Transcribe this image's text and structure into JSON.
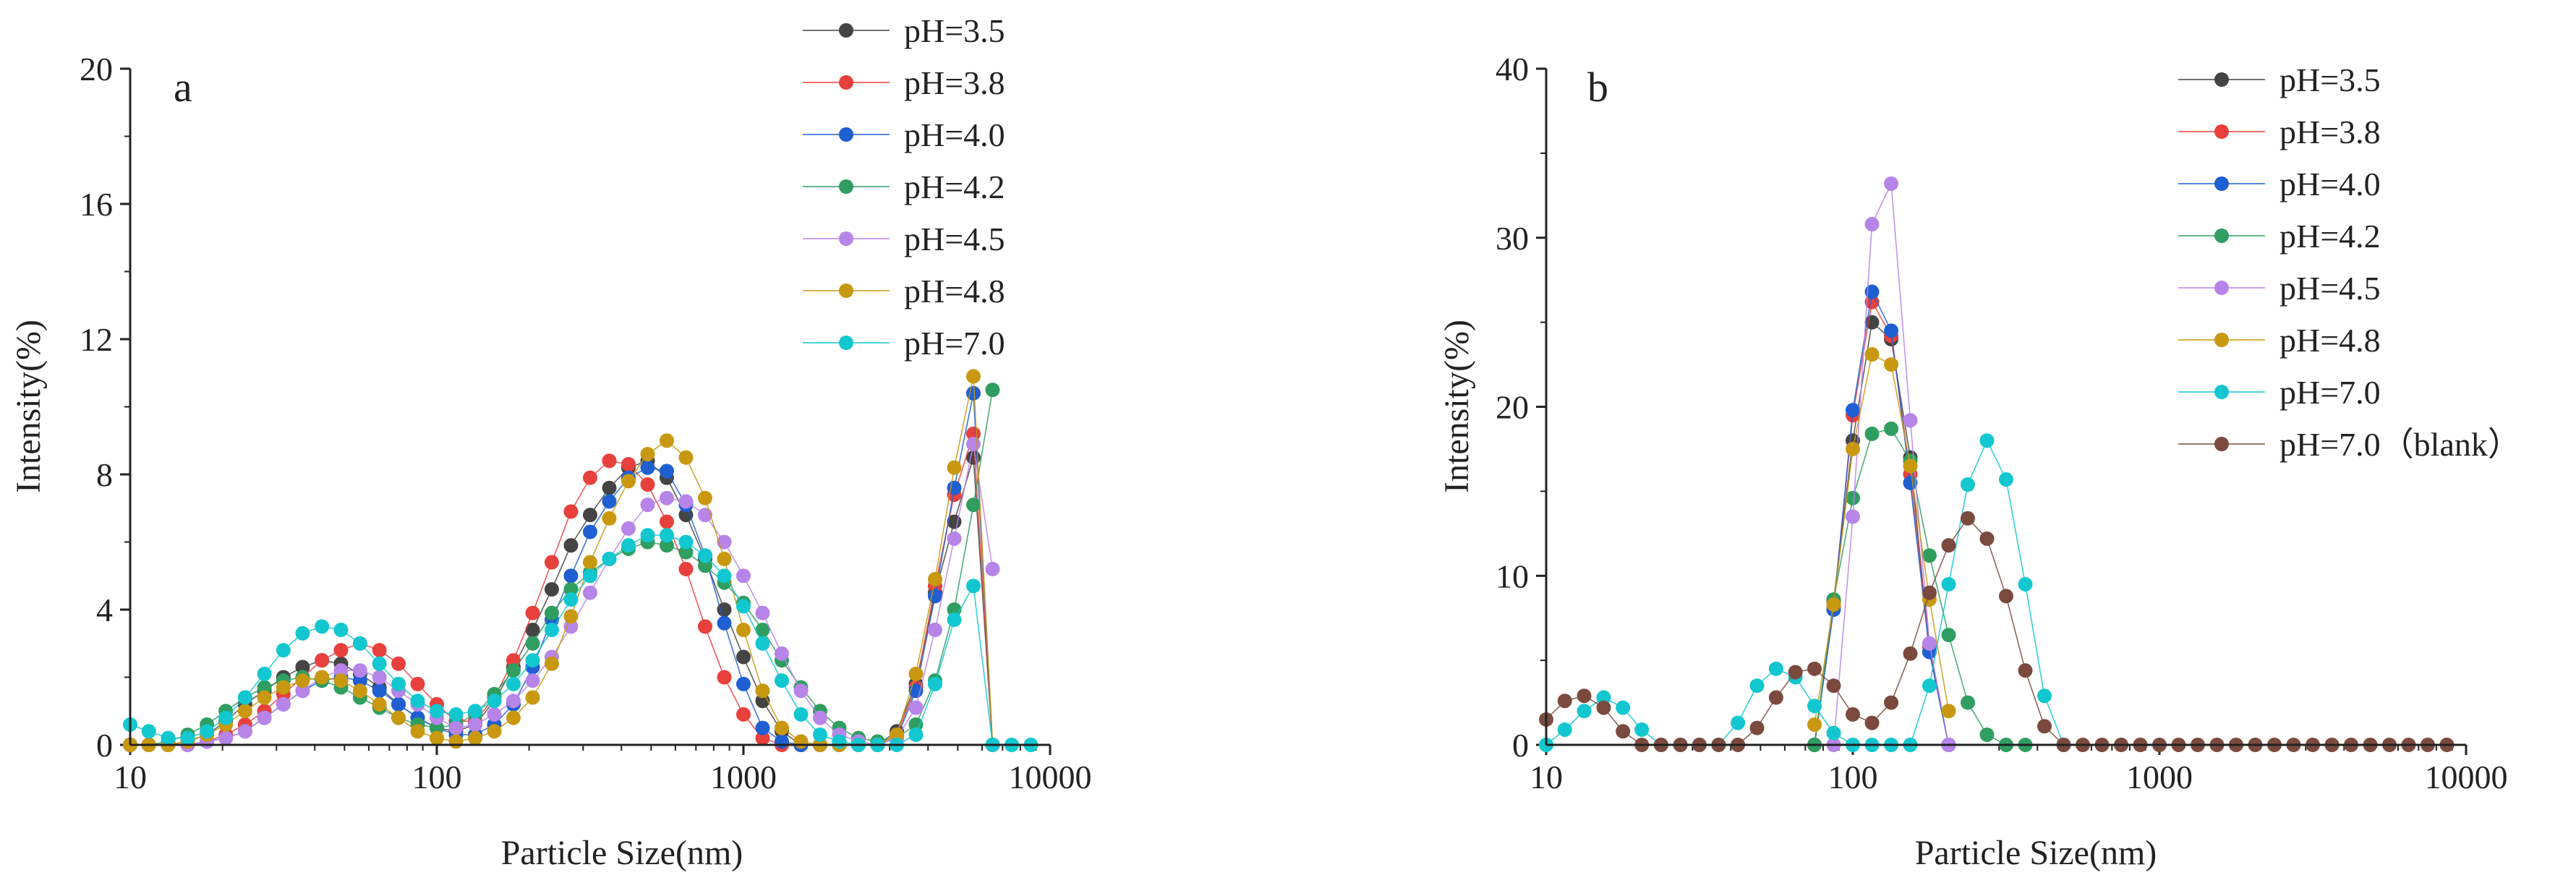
{
  "chart_data": [
    {
      "type": "line",
      "panel_label": "a",
      "xlabel": "Particle Size(nm)",
      "ylabel": "Intensity(%)",
      "xscale": "log",
      "xlim": [
        10,
        10000
      ],
      "ylim": [
        0,
        20
      ],
      "xticks": [
        "10",
        "100",
        "1000",
        "10000"
      ],
      "yticks": [
        "0",
        "4",
        "8",
        "12",
        "16",
        "20"
      ],
      "legend_position": "top-right",
      "series": [
        {
          "name": "pH=3.5",
          "color": "#444444",
          "x": [
            10,
            11.5,
            13.3,
            15.4,
            17.8,
            20.5,
            23.7,
            27.4,
            31.6,
            36.5,
            42.2,
            48.7,
            56.2,
            65,
            75,
            86.6,
            100,
            115.5,
            133.4,
            154,
            177.8,
            205.4,
            237.1,
            273.8,
            316.2,
            365.2,
            421.7,
            487,
            562.3,
            649.4,
            749.9,
            866,
            1000,
            1154.8,
            1333.5,
            1539.9,
            1778.3,
            2053.5,
            2371.4,
            2738.4,
            3162.3,
            3651.7,
            4217,
            4869.7,
            5623.4,
            6493.8
          ],
          "y": [
            0,
            0,
            0,
            0.1,
            0.3,
            0.7,
            1.2,
            1.6,
            2,
            2.3,
            2.5,
            2.4,
            2.1,
            1.7,
            1.2,
            0.8,
            0.5,
            0.4,
            0.6,
            1.3,
            2.3,
            3.4,
            4.6,
            5.9,
            6.8,
            7.6,
            8.2,
            8.4,
            7.9,
            6.8,
            5.5,
            4,
            2.6,
            1.3,
            0.4,
            0,
            0,
            0,
            0,
            0,
            0.4,
            1.8,
            4.5,
            6.6,
            8.5,
            0
          ]
        },
        {
          "name": "pH=3.8",
          "color": "#e8403c",
          "x": [
            10,
            11.5,
            13.3,
            15.4,
            17.8,
            20.5,
            23.7,
            27.4,
            31.6,
            36.5,
            42.2,
            48.7,
            56.2,
            65,
            75,
            86.6,
            100,
            115.5,
            133.4,
            154,
            177.8,
            205.4,
            237.1,
            273.8,
            316.2,
            365.2,
            421.7,
            487,
            562.3,
            649.4,
            749.9,
            866,
            1000,
            1154.8,
            1333.5,
            1539.9,
            1778.3,
            2053.5,
            2371.4,
            2738.4,
            3162.3,
            3651.7,
            4217,
            4869.7,
            5623.4,
            6493.8
          ],
          "y": [
            0,
            0,
            0,
            0,
            0.1,
            0.3,
            0.6,
            1,
            1.5,
            2,
            2.5,
            2.8,
            3,
            2.8,
            2.4,
            1.8,
            1.2,
            0.7,
            0.7,
            1.4,
            2.5,
            3.9,
            5.4,
            6.9,
            7.9,
            8.4,
            8.3,
            7.7,
            6.6,
            5.2,
            3.5,
            2,
            0.9,
            0.2,
            0,
            0,
            0,
            0,
            0,
            0,
            0.3,
            1.7,
            4.7,
            7.4,
            9.2,
            0
          ]
        },
        {
          "name": "pH=4.0",
          "color": "#1f5fd1",
          "x": [
            10,
            11.5,
            13.3,
            15.4,
            17.8,
            20.5,
            23.7,
            27.4,
            31.6,
            36.5,
            42.2,
            48.7,
            56.2,
            65,
            75,
            86.6,
            100,
            115.5,
            133.4,
            154,
            177.8,
            205.4,
            237.1,
            273.8,
            316.2,
            365.2,
            421.7,
            487,
            562.3,
            649.4,
            749.9,
            866,
            1000,
            1154.8,
            1333.5,
            1539.9,
            1778.3,
            2053.5,
            2371.4,
            2738.4,
            3162.3,
            3651.7,
            4217,
            4869.7,
            5623.4,
            6493.8
          ],
          "y": [
            0,
            0,
            0,
            0,
            0.1,
            0.2,
            0.4,
            0.8,
            1.2,
            1.6,
            1.9,
            2,
            1.9,
            1.6,
            1.2,
            0.8,
            0.5,
            0.3,
            0.3,
            0.6,
            1.2,
            2.3,
            3.7,
            5,
            6.3,
            7.2,
            7.9,
            8.2,
            8.1,
            7.1,
            5.6,
            3.6,
            1.8,
            0.5,
            0.1,
            0,
            0,
            0,
            0,
            0,
            0.2,
            1.6,
            4.4,
            7.6,
            10.4,
            0
          ]
        },
        {
          "name": "pH=4.2",
          "color": "#2f9e60",
          "x": [
            10,
            11.5,
            13.3,
            15.4,
            17.8,
            20.5,
            23.7,
            27.4,
            31.6,
            36.5,
            42.2,
            48.7,
            56.2,
            65,
            75,
            86.6,
            100,
            115.5,
            133.4,
            154,
            177.8,
            205.4,
            237.1,
            273.8,
            316.2,
            365.2,
            421.7,
            487,
            562.3,
            649.4,
            749.9,
            866,
            1000,
            1154.8,
            1333.5,
            1539.9,
            1778.3,
            2053.5,
            2371.4,
            2738.4,
            3162.3,
            3651.7,
            4217,
            4869.7,
            5623.4,
            6493.8
          ],
          "y": [
            0,
            0,
            0.1,
            0.3,
            0.6,
            1,
            1.4,
            1.7,
            1.9,
            2,
            1.9,
            1.7,
            1.4,
            1.1,
            0.8,
            0.6,
            0.5,
            0.6,
            0.9,
            1.5,
            2.2,
            3,
            3.9,
            4.6,
            5.1,
            5.5,
            5.8,
            6,
            5.9,
            5.7,
            5.3,
            4.8,
            4.2,
            3.4,
            2.5,
            1.7,
            1,
            0.5,
            0.2,
            0.1,
            0.2,
            0.6,
            1.9,
            4,
            7.1,
            10.5
          ]
        },
        {
          "name": "pH=4.5",
          "color": "#b784e8",
          "x": [
            10,
            11.5,
            13.3,
            15.4,
            17.8,
            20.5,
            23.7,
            27.4,
            31.6,
            36.5,
            42.2,
            48.7,
            56.2,
            65,
            75,
            86.6,
            100,
            115.5,
            133.4,
            154,
            177.8,
            205.4,
            237.1,
            273.8,
            316.2,
            365.2,
            421.7,
            487,
            562.3,
            649.4,
            749.9,
            866,
            1000,
            1154.8,
            1333.5,
            1539.9,
            1778.3,
            2053.5,
            2371.4,
            2738.4,
            3162.3,
            3651.7,
            4217,
            4869.7,
            5623.4,
            6493.8
          ],
          "y": [
            0,
            0,
            0,
            0,
            0.1,
            0.2,
            0.4,
            0.8,
            1.2,
            1.6,
            2,
            2.2,
            2.2,
            2,
            1.6,
            1.2,
            0.8,
            0.5,
            0.6,
            0.9,
            1.3,
            1.9,
            2.6,
            3.5,
            4.5,
            5.5,
            6.4,
            7.1,
            7.3,
            7.2,
            6.8,
            6,
            5,
            3.9,
            2.7,
            1.6,
            0.8,
            0.3,
            0.1,
            0,
            0.2,
            1.1,
            3.4,
            6.1,
            8.9,
            5.2
          ]
        },
        {
          "name": "pH=4.8",
          "color": "#c89810",
          "x": [
            10,
            11.5,
            13.3,
            15.4,
            17.8,
            20.5,
            23.7,
            27.4,
            31.6,
            36.5,
            42.2,
            48.7,
            56.2,
            65,
            75,
            86.6,
            100,
            115.5,
            133.4,
            154,
            177.8,
            205.4,
            237.1,
            273.8,
            316.2,
            365.2,
            421.7,
            487,
            562.3,
            649.4,
            749.9,
            866,
            1000,
            1154.8,
            1333.5,
            1539.9,
            1778.3,
            2053.5,
            2371.4,
            2738.4,
            3162.3,
            3651.7,
            4217,
            4869.7,
            5623.4,
            6493.8
          ],
          "y": [
            0,
            0,
            0,
            0.1,
            0.3,
            0.6,
            1,
            1.4,
            1.7,
            1.9,
            2,
            1.9,
            1.6,
            1.2,
            0.8,
            0.4,
            0.2,
            0.1,
            0.2,
            0.4,
            0.8,
            1.4,
            2.4,
            3.8,
            5.4,
            6.7,
            7.8,
            8.6,
            9,
            8.5,
            7.3,
            5.5,
            3.4,
            1.6,
            0.5,
            0.1,
            0,
            0,
            0,
            0,
            0.3,
            2.1,
            4.9,
            8.2,
            10.9,
            0
          ]
        },
        {
          "name": "pH=7.0",
          "color": "#12c7cf",
          "x": [
            10,
            11.5,
            13.3,
            15.4,
            17.8,
            20.5,
            23.7,
            27.4,
            31.6,
            36.5,
            42.2,
            48.7,
            56.2,
            65,
            75,
            86.6,
            100,
            115.5,
            133.4,
            154,
            177.8,
            205.4,
            237.1,
            273.8,
            316.2,
            365.2,
            421.7,
            487,
            562.3,
            649.4,
            749.9,
            866,
            1000,
            1154.8,
            1333.5,
            1539.9,
            1778.3,
            2053.5,
            2371.4,
            2738.4,
            3162.3,
            3651.7,
            4217,
            4869.7,
            5623.4,
            6493.8,
            7498.9,
            8659.6
          ],
          "y": [
            0.6,
            0.4,
            0.2,
            0.2,
            0.4,
            0.8,
            1.4,
            2.1,
            2.8,
            3.3,
            3.5,
            3.4,
            3,
            2.4,
            1.8,
            1.3,
            1,
            0.9,
            1,
            1.3,
            1.8,
            2.5,
            3.4,
            4.3,
            5,
            5.5,
            5.9,
            6.2,
            6.2,
            6,
            5.6,
            5,
            4.1,
            3,
            1.9,
            0.9,
            0.3,
            0.1,
            0,
            0,
            0,
            0.3,
            1.8,
            3.7,
            4.7,
            0,
            0,
            0
          ]
        }
      ]
    },
    {
      "type": "line",
      "panel_label": "b",
      "xlabel": "Particle Size(nm)",
      "ylabel": "Intensity(%)",
      "xscale": "log",
      "xlim": [
        10,
        10000
      ],
      "ylim": [
        0,
        40
      ],
      "xticks": [
        "10",
        "100",
        "1000",
        "10000"
      ],
      "yticks": [
        "0",
        "10",
        "20",
        "30",
        "40"
      ],
      "legend_position": "top-right",
      "series": [
        {
          "name": "pH=3.5",
          "color": "#444444",
          "x": [
            75,
            86.6,
            100,
            115.5,
            133.4,
            154,
            177.8,
            205.4
          ],
          "y": [
            0,
            8.5,
            18,
            25,
            24,
            17,
            5.5,
            0
          ]
        },
        {
          "name": "pH=3.8",
          "color": "#e8403c",
          "x": [
            75,
            86.6,
            100,
            115.5,
            133.4,
            154,
            177.8,
            205.4
          ],
          "y": [
            0,
            8.2,
            19.5,
            26.2,
            24.2,
            16,
            5.8,
            0
          ]
        },
        {
          "name": "pH=4.0",
          "color": "#1f5fd1",
          "x": [
            75,
            86.6,
            100,
            115.5,
            133.4,
            154,
            177.8,
            205.4
          ],
          "y": [
            0,
            8,
            19.8,
            26.8,
            24.5,
            15.5,
            5.5,
            0
          ]
        },
        {
          "name": "pH=4.2",
          "color": "#2f9e60",
          "x": [
            75,
            86.6,
            100,
            115.5,
            133.4,
            154,
            177.8,
            205.4,
            237.1,
            273.8,
            316.2,
            365.2
          ],
          "y": [
            0,
            8.6,
            14.6,
            18.4,
            18.7,
            16.8,
            11.2,
            6.5,
            2.5,
            0.6,
            0,
            0
          ]
        },
        {
          "name": "pH=4.5",
          "color": "#b784e8",
          "x": [
            86.6,
            100,
            115.5,
            133.4,
            154,
            177.8,
            205.4
          ],
          "y": [
            0,
            13.5,
            30.8,
            33.2,
            19.2,
            6,
            0
          ]
        },
        {
          "name": "pH=4.8",
          "color": "#c89810",
          "x": [
            75,
            86.6,
            100,
            115.5,
            133.4,
            154,
            177.8,
            205.4
          ],
          "y": [
            1.2,
            8.3,
            17.5,
            23.1,
            22.5,
            16.5,
            8.6,
            2
          ]
        },
        {
          "name": "pH=7.0",
          "color": "#12c7cf",
          "x": [
            10,
            11.5,
            13.3,
            15.4,
            17.8,
            20.5,
            23.7,
            27.4,
            31.6,
            36.5,
            42.2,
            48.7,
            56.2,
            65,
            75,
            86.6,
            100,
            115.5,
            133.4,
            154,
            177.8,
            205.4,
            237.1,
            273.8,
            316.2,
            365.2,
            421.7,
            487
          ],
          "y": [
            0,
            0.9,
            2,
            2.8,
            2.2,
            0.9,
            0,
            0,
            0,
            0,
            1.3,
            3.5,
            4.5,
            4,
            2.3,
            0.7,
            0,
            0,
            0,
            0,
            3.5,
            9.5,
            15.4,
            18,
            15.7,
            9.5,
            2.9,
            0
          ]
        },
        {
          "name": "pH=7.0（blank）",
          "color": "#7a4a3e",
          "x": [
            10,
            11.5,
            13.3,
            15.4,
            17.8,
            20.5,
            23.7,
            27.4,
            31.6,
            36.5,
            42.2,
            48.7,
            56.2,
            65,
            75,
            86.6,
            100,
            115.5,
            133.4,
            154,
            177.8,
            205.4,
            237.1,
            273.8,
            316.2,
            365.2,
            421.7,
            487,
            562.3,
            649.4,
            749.9,
            866,
            1000,
            1154.8,
            1333.5,
            1539.9,
            1778.3,
            2053.5,
            2371.4,
            2738.4,
            3162.3,
            3651.7,
            4217,
            4869.7,
            5623.4,
            6493.8,
            7498.9,
            8659.6
          ],
          "y": [
            1.5,
            2.6,
            2.9,
            2.2,
            0.8,
            0,
            0,
            0,
            0,
            0,
            0,
            1,
            2.8,
            4.3,
            4.5,
            3.5,
            1.8,
            1.3,
            2.5,
            5.4,
            9,
            11.8,
            13.4,
            12.2,
            8.8,
            4.4,
            1.1,
            0,
            0,
            0,
            0,
            0,
            0,
            0,
            0,
            0,
            0,
            0,
            0,
            0,
            0,
            0,
            0,
            0,
            0,
            0,
            0,
            0
          ]
        }
      ]
    }
  ]
}
